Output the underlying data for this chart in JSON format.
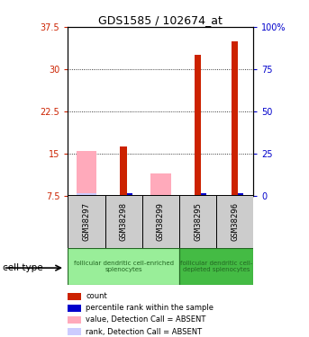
{
  "title": "GDS1585 / 102674_at",
  "samples": [
    "GSM38297",
    "GSM38298",
    "GSM38299",
    "GSM38295",
    "GSM38296"
  ],
  "red_values": [
    null,
    16.2,
    null,
    32.5,
    35.0
  ],
  "pink_values": [
    15.5,
    null,
    11.5,
    null,
    null
  ],
  "blue_values": [
    null,
    7.85,
    null,
    7.85,
    7.85
  ],
  "lavender_values": [
    7.85,
    null,
    null,
    null,
    null
  ],
  "ylim_left": [
    7.5,
    37.5
  ],
  "ylim_right": [
    0,
    100
  ],
  "yticks_left": [
    7.5,
    15.0,
    22.5,
    30.0,
    37.5
  ],
  "yticks_right": [
    0,
    25,
    50,
    75,
    100
  ],
  "ytick_labels_left": [
    "7.5",
    "15",
    "22.5",
    "30",
    "37.5"
  ],
  "ytick_labels_right": [
    "0",
    "25",
    "50",
    "75",
    "100%"
  ],
  "left_tick_color": "#cc2200",
  "right_tick_color": "#0000cc",
  "group1_label": "follicular dendritic cell-enriched\nsplenocytes",
  "group2_label": "follicular dendritic cell-\ndepleted splenocytes",
  "group1_color": "#99ee99",
  "group2_color": "#44bb44",
  "group_text_color": "#226622",
  "cell_type_label": "cell type",
  "sample_box_color": "#cccccc",
  "legend_items": [
    {
      "color": "#cc2200",
      "label": "count"
    },
    {
      "color": "#0000cc",
      "label": "percentile rank within the sample"
    },
    {
      "color": "#ffaabb",
      "label": "value, Detection Call = ABSENT"
    },
    {
      "color": "#ccccff",
      "label": "rank, Detection Call = ABSENT"
    }
  ]
}
